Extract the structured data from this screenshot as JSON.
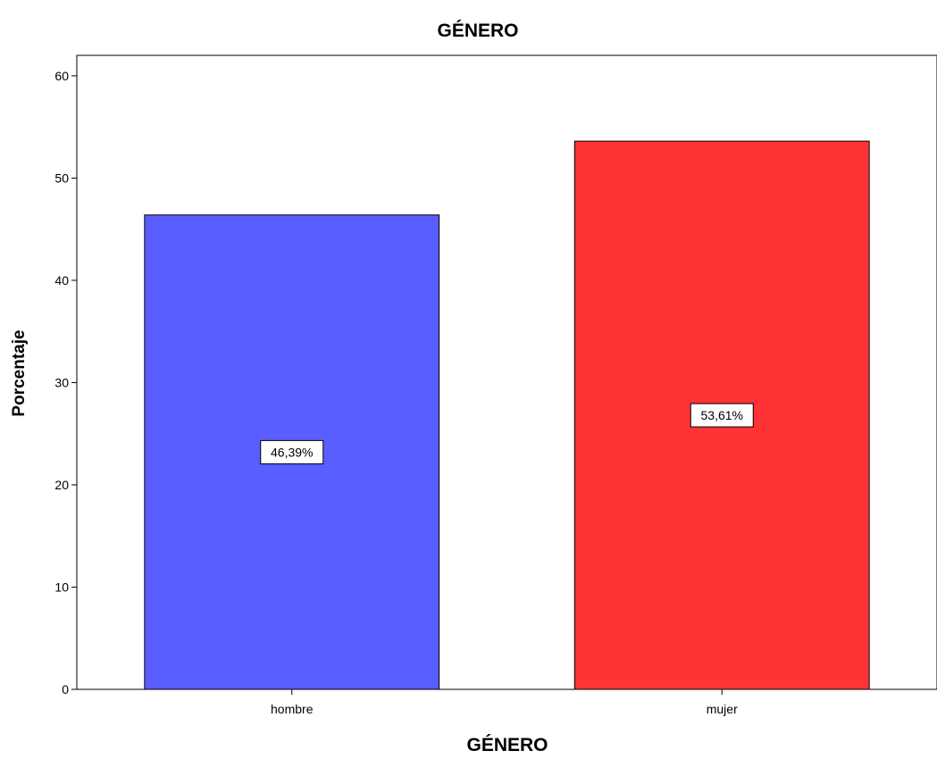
{
  "chart_data": {
    "type": "bar",
    "title": "GÉNERO",
    "xlabel": "GÉNERO",
    "ylabel": "Porcentaje",
    "categories": [
      "hombre",
      "mujer"
    ],
    "values": [
      46.39,
      53.61
    ],
    "data_labels": [
      "46,39%",
      "53,61%"
    ],
    "colors": [
      "#5a5dff",
      "#ff3236"
    ],
    "ylim": [
      0,
      62
    ],
    "yticks": [
      0,
      10,
      20,
      30,
      40,
      50,
      60
    ],
    "grid": false,
    "legend": "none"
  }
}
